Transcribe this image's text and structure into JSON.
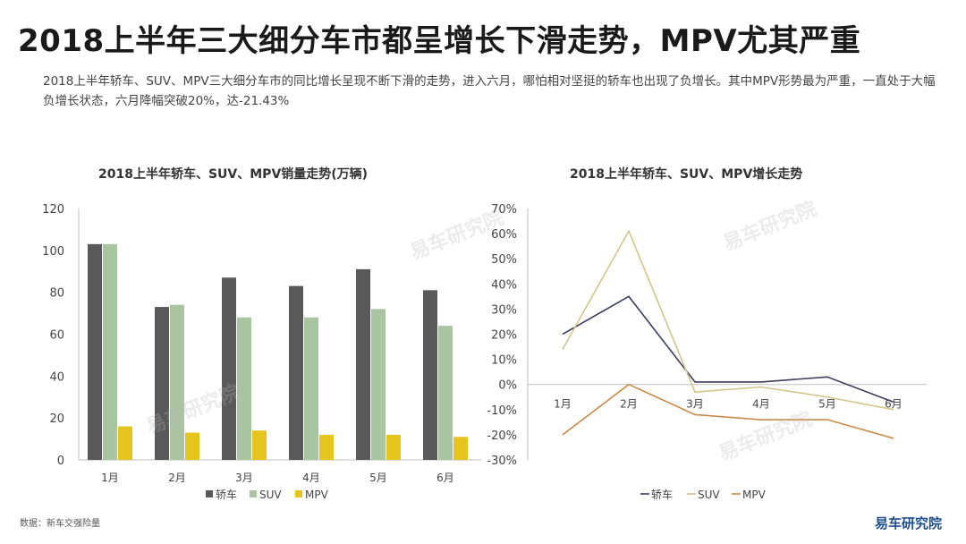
{
  "header": {
    "title": "2018上半年三大细分车市都呈增长下滑走势，MPV尤其严重",
    "subtitle": "2018上半年轿车、SUV、MPV三大细分车市的同比增长呈现不断下滑的走势，进入六月，哪怕相对坚挺的轿车也出现了负增长。其中MPV形势最为严重，一直处于大幅负增长状态，六月降幅突破20%，达-21.43%"
  },
  "footer": {
    "source": "数据：新车交强险量",
    "logo": "易车研究院"
  },
  "watermark": "易车研究院",
  "colors": {
    "sedan": "#595959",
    "suv": "#a9c4a1",
    "mpv": "#e6c41e",
    "line_sedan": "#3a3f5c",
    "line_suv": "#d4c48a",
    "line_mpv": "#c98a4a"
  },
  "chart_data": [
    {
      "type": "bar",
      "title": "2018上半年轿车、SUV、MPV销量走势(万辆)",
      "categories": [
        "1月",
        "2月",
        "3月",
        "4月",
        "5月",
        "6月"
      ],
      "series": [
        {
          "name": "轿车",
          "values": [
            103,
            73,
            87,
            83,
            91,
            81
          ]
        },
        {
          "name": "SUV",
          "values": [
            103,
            74,
            68,
            68,
            72,
            64
          ]
        },
        {
          "name": "MPV",
          "values": [
            16,
            13,
            14,
            12,
            12,
            11
          ]
        }
      ],
      "yticks": [
        "0",
        "20",
        "40",
        "60",
        "80",
        "100",
        "120"
      ],
      "ylim": [
        0,
        120
      ],
      "legend": "bottom"
    },
    {
      "type": "line",
      "title": "2018上半年轿车、SUV、MPV增长走势",
      "categories": [
        "1月",
        "2月",
        "3月",
        "4月",
        "5月",
        "6月"
      ],
      "series": [
        {
          "name": "轿车",
          "values": [
            20,
            35,
            1,
            1,
            3,
            -7
          ]
        },
        {
          "name": "SUV",
          "values": [
            14,
            61,
            -3,
            -1,
            -5,
            -10
          ]
        },
        {
          "name": "MPV",
          "values": [
            -20,
            0,
            -12,
            -14,
            -14,
            -21.43
          ]
        }
      ],
      "yticks": [
        "-30%",
        "-20%",
        "-10%",
        "0%",
        "10%",
        "20%",
        "30%",
        "40%",
        "50%",
        "60%",
        "70%"
      ],
      "ylim": [
        -30,
        70
      ],
      "legend": "bottom"
    }
  ]
}
